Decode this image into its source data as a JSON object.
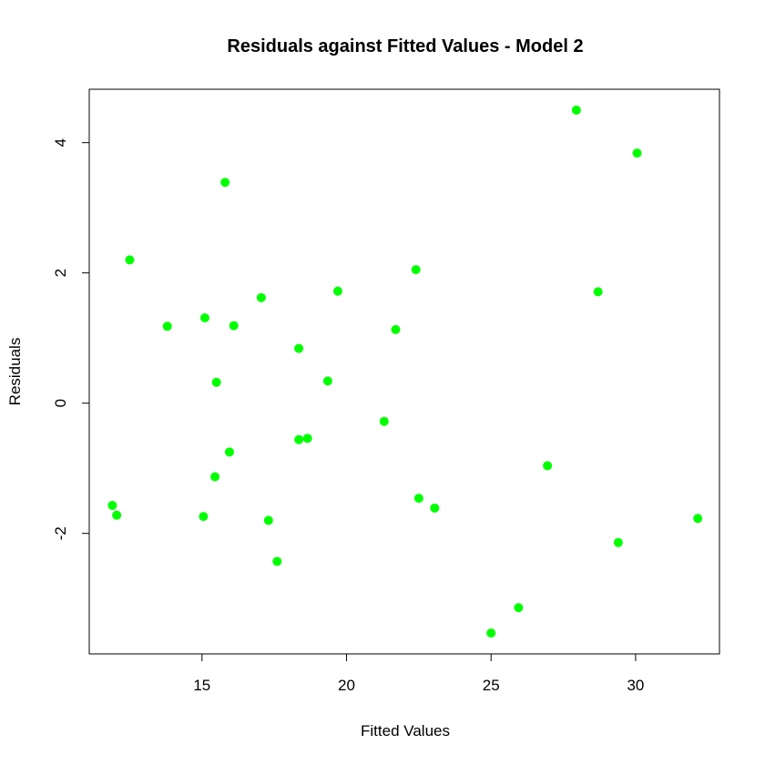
{
  "chart_data": {
    "type": "scatter",
    "title": "Residuals against Fitted Values - Model 2",
    "xlabel": "Fitted Values",
    "ylabel": "Residuals",
    "xlim": [
      11.1,
      32.9
    ],
    "ylim": [
      -3.85,
      4.82
    ],
    "xticks": [
      15,
      20,
      25,
      30
    ],
    "yticks": [
      -2,
      0,
      2,
      4
    ],
    "xtick_labels": [
      "15",
      "20",
      "25",
      "30"
    ],
    "ytick_labels": [
      "-2",
      "0",
      "2",
      "4"
    ],
    "grid": false,
    "point_color": "#00ff00",
    "series": [
      {
        "x": [
          11.9,
          12.05,
          12.5,
          13.8,
          15.05,
          15.1,
          15.45,
          15.5,
          15.8,
          15.95,
          16.1,
          17.05,
          17.3,
          17.6,
          18.35,
          18.35,
          18.65,
          19.35,
          19.7,
          21.3,
          21.7,
          22.4,
          22.5,
          23.05,
          25.0,
          25.95,
          26.95,
          27.95,
          28.7,
          29.4,
          30.05,
          32.15
        ],
        "y": [
          -1.57,
          -1.72,
          2.2,
          1.18,
          -1.74,
          1.31,
          -1.13,
          0.32,
          3.39,
          -0.75,
          1.19,
          1.62,
          -1.8,
          -2.43,
          0.84,
          -0.56,
          -0.54,
          0.34,
          1.72,
          -0.28,
          1.13,
          2.05,
          -1.46,
          -1.61,
          -3.53,
          -3.14,
          -0.96,
          4.5,
          1.71,
          -2.14,
          3.84,
          -1.77
        ]
      }
    ]
  }
}
